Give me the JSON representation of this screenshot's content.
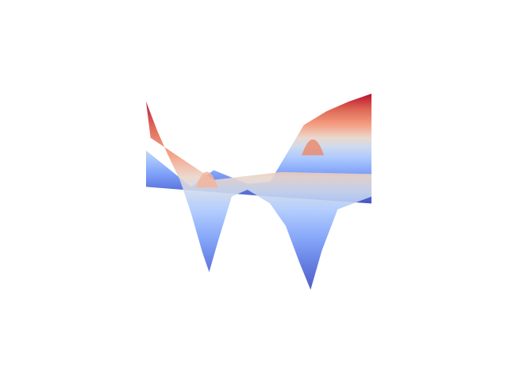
{
  "chart_data": {
    "type": "surface",
    "colormap": "coolwarm",
    "colors": {
      "low": "#3b4cc0",
      "mid": "#dddcdc",
      "high": "#b40426",
      "background": "#ffffff"
    },
    "axes_visible": false,
    "grid": false,
    "title": "",
    "xlabel": "",
    "ylabel": "",
    "zlabel": "",
    "series": [
      {
        "part": "front-edge",
        "points": [
          {
            "x": 0.0,
            "z": 0.92
          },
          {
            "x": 0.05,
            "z": 0.62
          },
          {
            "x": 0.1,
            "z": 0.36
          },
          {
            "x": 0.15,
            "z": 0.12
          },
          {
            "x": 0.2,
            "z": -0.22
          },
          {
            "x": 0.25,
            "z": -0.62
          },
          {
            "x": 0.28,
            "z": -0.82
          },
          {
            "x": 0.32,
            "z": -0.5
          },
          {
            "x": 0.38,
            "z": -0.05
          },
          {
            "x": 0.45,
            "z": 0.02
          },
          {
            "x": 0.55,
            "z": -0.12
          },
          {
            "x": 0.62,
            "z": -0.35
          },
          {
            "x": 0.68,
            "z": -0.72
          },
          {
            "x": 0.73,
            "z": -1.0
          },
          {
            "x": 0.78,
            "z": -0.6
          },
          {
            "x": 0.85,
            "z": -0.18
          },
          {
            "x": 1.0,
            "z": -0.05
          }
        ]
      },
      {
        "part": "back-edge",
        "points": [
          {
            "x": 0.0,
            "z": 0.42
          },
          {
            "x": 0.2,
            "z": 0.05
          },
          {
            "x": 0.3,
            "z": 0.22
          },
          {
            "x": 0.45,
            "z": 0.08
          },
          {
            "x": 0.55,
            "z": 0.1
          },
          {
            "x": 0.7,
            "z": 0.68
          },
          {
            "x": 0.8,
            "z": 0.82
          },
          {
            "x": 0.9,
            "z": 0.92
          },
          {
            "x": 1.0,
            "z": 1.0
          }
        ]
      }
    ]
  }
}
